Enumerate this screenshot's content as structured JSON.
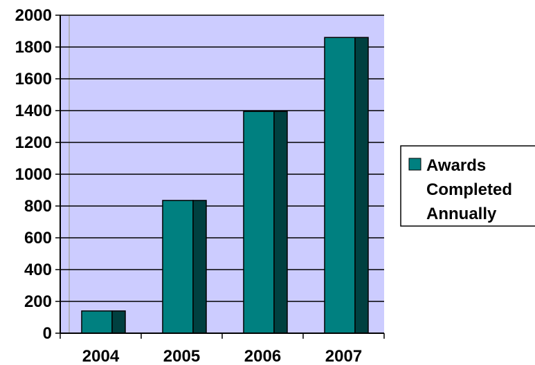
{
  "chart_data": {
    "type": "bar",
    "categories": [
      "2004",
      "2005",
      "2006",
      "2007"
    ],
    "series": [
      {
        "name": "Awards Completed Annually",
        "values": [
          140,
          835,
          1395,
          1860
        ]
      }
    ],
    "ylim": [
      0,
      2000
    ],
    "yticks": [
      "0",
      "200",
      "400",
      "600",
      "800",
      "1000",
      "1200",
      "1400",
      "1600",
      "1800",
      "2000"
    ],
    "grid": true,
    "legend": {
      "position": "right",
      "lines": [
        "Awards",
        "Completed",
        "Annually"
      ]
    },
    "colors": {
      "plot_background": "#ccccff",
      "bar_front": "#008080",
      "bar_side": "#004040",
      "legend_swatch": "#008080",
      "axis": "#000000"
    }
  }
}
